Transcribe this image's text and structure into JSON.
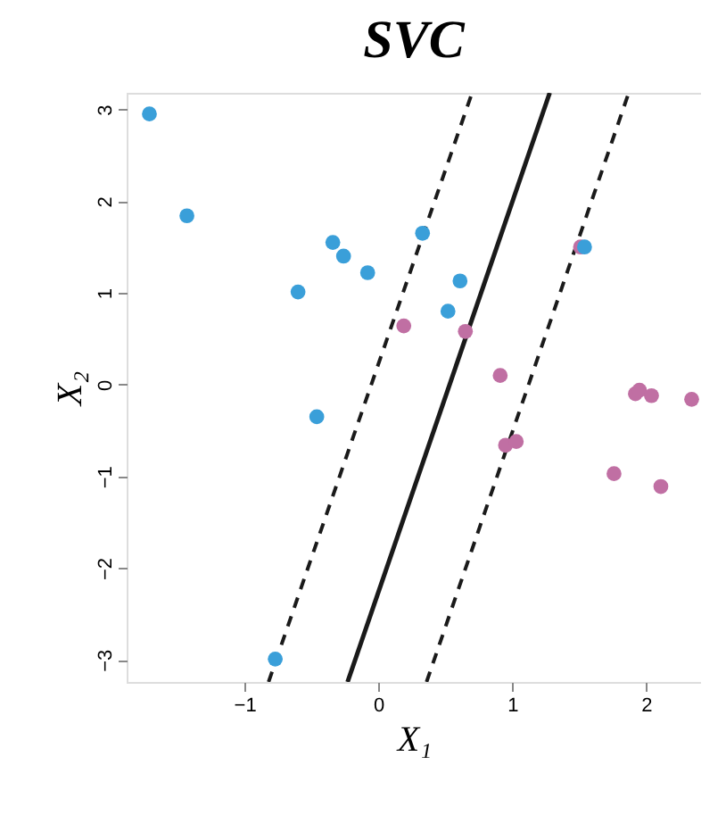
{
  "chart_data": {
    "type": "scatter",
    "title": "SVC",
    "xlabel": "X₁",
    "ylabel": "X₂",
    "xlim": [
      -1.88,
      2.41
    ],
    "ylim": [
      -3.24,
      3.18
    ],
    "xticks": [
      -1,
      0,
      1,
      2
    ],
    "yticks": [
      -3,
      -2,
      -1,
      0,
      1,
      2,
      3
    ],
    "grid": false,
    "series": [
      {
        "color": "#c06fa3",
        "marker": "circle",
        "x": [
          0.19,
          0.65,
          0.91,
          1.51,
          0.95,
          1.03,
          1.92,
          1.95,
          2.04,
          2.34,
          1.76,
          2.11
        ],
        "values": [
          0.64,
          0.58,
          0.1,
          1.5,
          -0.66,
          -0.62,
          -0.1,
          -0.06,
          -0.12,
          -0.16,
          -0.97,
          -1.11
        ]
      },
      {
        "color": "#3a9fd9",
        "marker": "circle",
        "x": [
          -1.71,
          -1.43,
          -0.6,
          -0.34,
          -0.26,
          -0.08,
          0.33,
          0.61,
          0.52,
          -0.46,
          -0.77,
          1.54
        ],
        "values": [
          2.95,
          1.84,
          1.01,
          1.55,
          1.4,
          1.22,
          1.65,
          1.13,
          0.8,
          -0.35,
          -2.99,
          1.5
        ]
      },
      {
        "type": "line",
        "marker": "none",
        "line_style": "solid",
        "color": "#1a1a1a",
        "x": [
          -0.23,
          1.28
        ],
        "values": [
          -3.24,
          3.18
        ]
      },
      {
        "type": "line",
        "marker": "none",
        "line_style": "dashed",
        "color": "#1a1a1a",
        "x": [
          -0.82,
          0.7
        ],
        "values": [
          -3.24,
          3.18
        ]
      },
      {
        "type": "line",
        "marker": "none",
        "line_style": "dashed",
        "color": "#1a1a1a",
        "x": [
          0.36,
          1.87
        ],
        "values": [
          -3.24,
          3.18
        ]
      }
    ]
  }
}
